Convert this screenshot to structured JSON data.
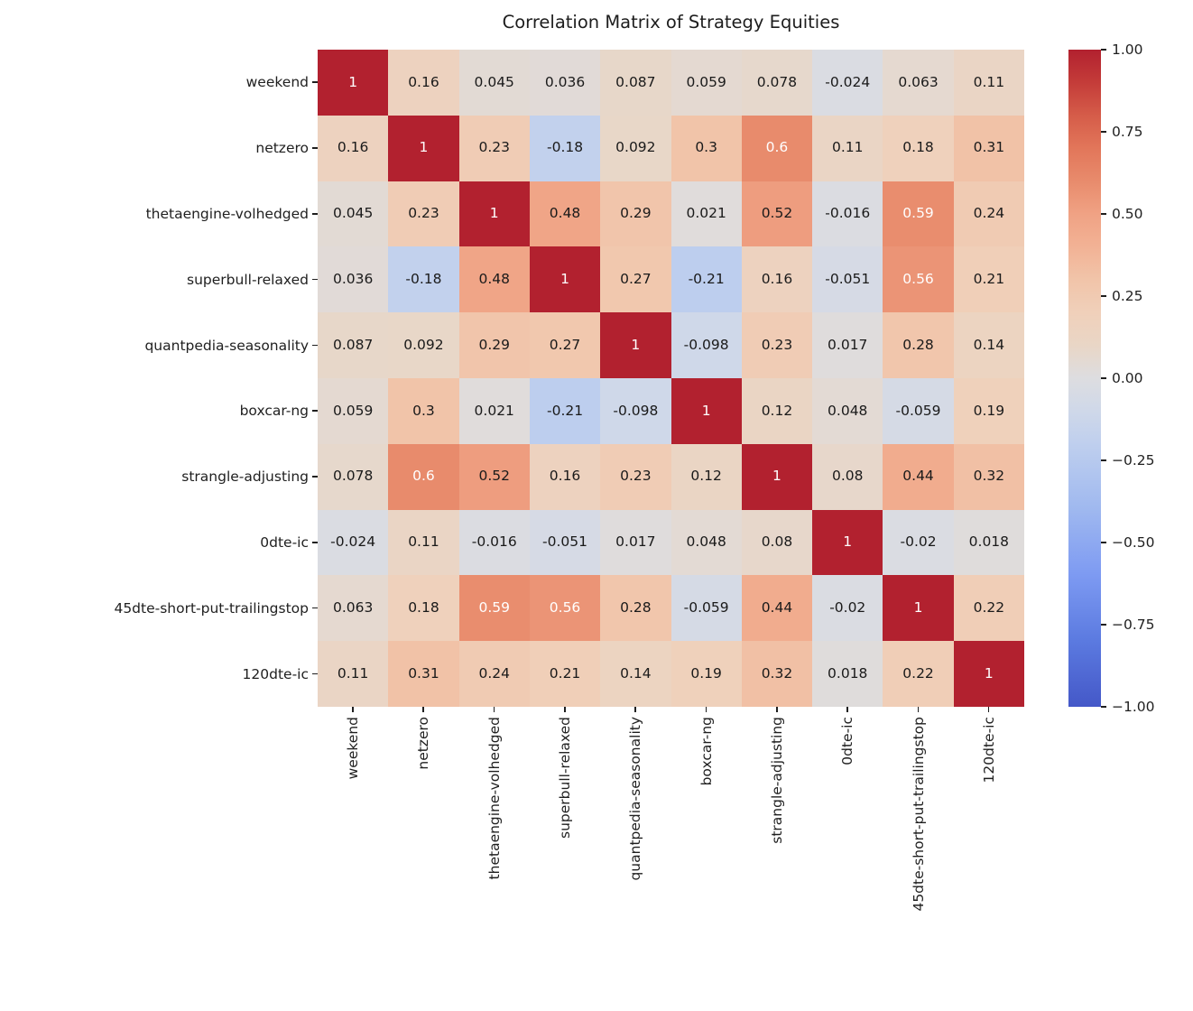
{
  "title": "Correlation Matrix of Strategy Equities",
  "chart_data": {
    "type": "heatmap",
    "labels": [
      "weekend",
      "netzero",
      "thetaengine-volhedged",
      "superbull-relaxed",
      "quantpedia-seasonality",
      "boxcar-ng",
      "strangle-adjusting",
      "0dte-ic",
      "45dte-short-put-trailingstop",
      "120dte-ic"
    ],
    "matrix": [
      [
        1,
        0.16,
        0.045,
        0.036,
        0.087,
        0.059,
        0.078,
        -0.024,
        0.063,
        0.11
      ],
      [
        0.16,
        1,
        0.23,
        -0.18,
        0.092,
        0.3,
        0.6,
        0.11,
        0.18,
        0.31
      ],
      [
        0.045,
        0.23,
        1,
        0.48,
        0.29,
        0.021,
        0.52,
        -0.016,
        0.59,
        0.24
      ],
      [
        0.036,
        -0.18,
        0.48,
        1,
        0.27,
        -0.21,
        0.16,
        -0.051,
        0.56,
        0.21
      ],
      [
        0.087,
        0.092,
        0.29,
        0.27,
        1,
        -0.098,
        0.23,
        0.017,
        0.28,
        0.14
      ],
      [
        0.059,
        0.3,
        0.021,
        -0.21,
        -0.098,
        1,
        0.12,
        0.048,
        -0.059,
        0.19
      ],
      [
        0.078,
        0.6,
        0.52,
        0.16,
        0.23,
        0.12,
        1,
        0.08,
        0.44,
        0.32
      ],
      [
        -0.024,
        0.11,
        -0.016,
        -0.051,
        0.017,
        0.048,
        0.08,
        1,
        -0.02,
        0.018
      ],
      [
        0.063,
        0.18,
        0.59,
        0.56,
        0.28,
        -0.059,
        0.44,
        -0.02,
        1,
        0.22
      ],
      [
        0.11,
        0.31,
        0.24,
        0.21,
        0.14,
        0.19,
        0.32,
        0.018,
        0.22,
        1
      ]
    ],
    "vmin": -1,
    "vmax": 1,
    "colorbar_tick_labels": [
      "1.00",
      "0.75",
      "0.50",
      "0.25",
      "0.00",
      "−0.25",
      "−0.50",
      "−0.75",
      "−1.00"
    ],
    "colorbar_tick_values": [
      1,
      0.75,
      0.5,
      0.25,
      0,
      -0.25,
      -0.5,
      -0.75,
      -1
    ],
    "colormap_name": "coolwarm",
    "colormap_stops": [
      [
        0.0,
        "#4458c8"
      ],
      [
        0.1,
        "#5b7ae0"
      ],
      [
        0.2,
        "#7d9af2"
      ],
      [
        0.3,
        "#9fb8ef"
      ],
      [
        0.4,
        "#bfcfee"
      ],
      [
        0.45,
        "#cfd8e9"
      ],
      [
        0.5,
        "#dddde0"
      ],
      [
        0.55,
        "#e9d6c6"
      ],
      [
        0.6,
        "#f0d0ba"
      ],
      [
        0.65,
        "#f1c4a9"
      ],
      [
        0.7,
        "#f2b295"
      ],
      [
        0.75,
        "#f0a284"
      ],
      [
        0.8,
        "#e88b6c"
      ],
      [
        0.85,
        "#e2765a"
      ],
      [
        0.9,
        "#d55c49"
      ],
      [
        0.95,
        "#c43c39"
      ],
      [
        1.0,
        "#b2212f"
      ]
    ],
    "annotation_color_dark": "#1a1a1a",
    "annotation_color_light": "#ffffff",
    "annotation_light_threshold": 0.55,
    "grid": false,
    "legend_position": "right-colorbar"
  }
}
